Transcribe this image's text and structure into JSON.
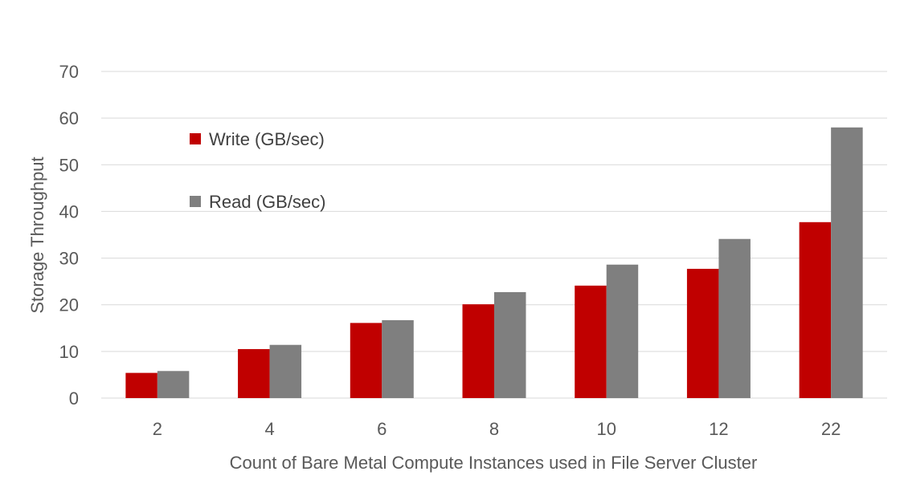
{
  "chart_data": {
    "type": "bar",
    "title": "",
    "categories": [
      "2",
      "4",
      "6",
      "8",
      "10",
      "12",
      "22"
    ],
    "series": [
      {
        "name": "Write (GB/sec)",
        "color": "#c00000",
        "values": [
          5.4,
          10.5,
          16.1,
          20.1,
          24.1,
          27.7,
          37.7
        ]
      },
      {
        "name": "Read (GB/sec)",
        "color": "#7f7f7f",
        "values": [
          5.8,
          11.4,
          16.7,
          22.7,
          28.6,
          34.1,
          58.0
        ]
      }
    ],
    "xlabel": "Count of Bare Metal Compute Instances used in File Server Cluster",
    "ylabel": "Storage Throughput",
    "ylim": [
      0,
      70
    ],
    "yticks": [
      "0",
      "10",
      "20",
      "30",
      "40",
      "50",
      "60",
      "70"
    ],
    "grid": true,
    "legend_position": "top-left"
  }
}
